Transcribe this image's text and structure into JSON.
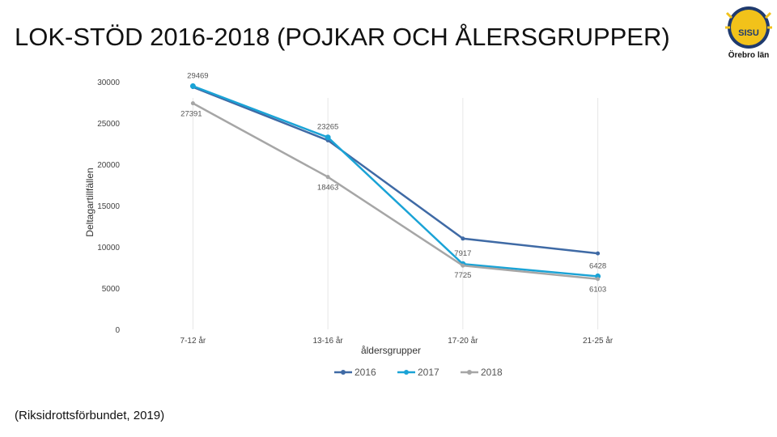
{
  "slide": {
    "title": "LOK-STÖD 2016-2018 (POJKAR OCH ÅLERSGRUPPER)",
    "source": "(Riksidrottsförbundet, 2019)",
    "logo_text": "SISU",
    "logo_subtitle": "Örebro län"
  },
  "chart_data": {
    "type": "line",
    "categories": [
      "7-12 år",
      "13-16 år",
      "17-20 år",
      "21-25 år"
    ],
    "xlabel": "åldersgrupper",
    "ylabel": "Deltagartillfällen",
    "ylim": [
      0,
      30000
    ],
    "yticks": [
      0,
      5000,
      10000,
      15000,
      20000,
      25000,
      30000
    ],
    "grid": false,
    "legend_position": "bottom",
    "series": [
      {
        "name": "2016",
        "color": "#3f6aa5",
        "values": [
          29350,
          22900,
          11000,
          9200
        ]
      },
      {
        "name": "2017",
        "color": "#1aa3d6",
        "values": [
          29469,
          23265,
          7917,
          6428
        ]
      },
      {
        "name": "2018",
        "color": "#a6a6a6",
        "values": [
          27391,
          18463,
          7725,
          6103
        ]
      }
    ],
    "data_labels": [
      {
        "text": "29469",
        "series": "2017",
        "category": "7-12 år"
      },
      {
        "text": "27391",
        "series": "2018",
        "category": "7-12 år"
      },
      {
        "text": "23265",
        "series": "2017",
        "category": "13-16 år"
      },
      {
        "text": "18463",
        "series": "2018",
        "category": "13-16 år"
      },
      {
        "text": "7917",
        "series": "2017",
        "category": "17-20 år"
      },
      {
        "text": "7725",
        "series": "2018",
        "category": "17-20 år"
      },
      {
        "text": "6428",
        "series": "2017",
        "category": "21-25 år"
      },
      {
        "text": "6103",
        "series": "2018",
        "category": "21-25 år"
      }
    ]
  }
}
